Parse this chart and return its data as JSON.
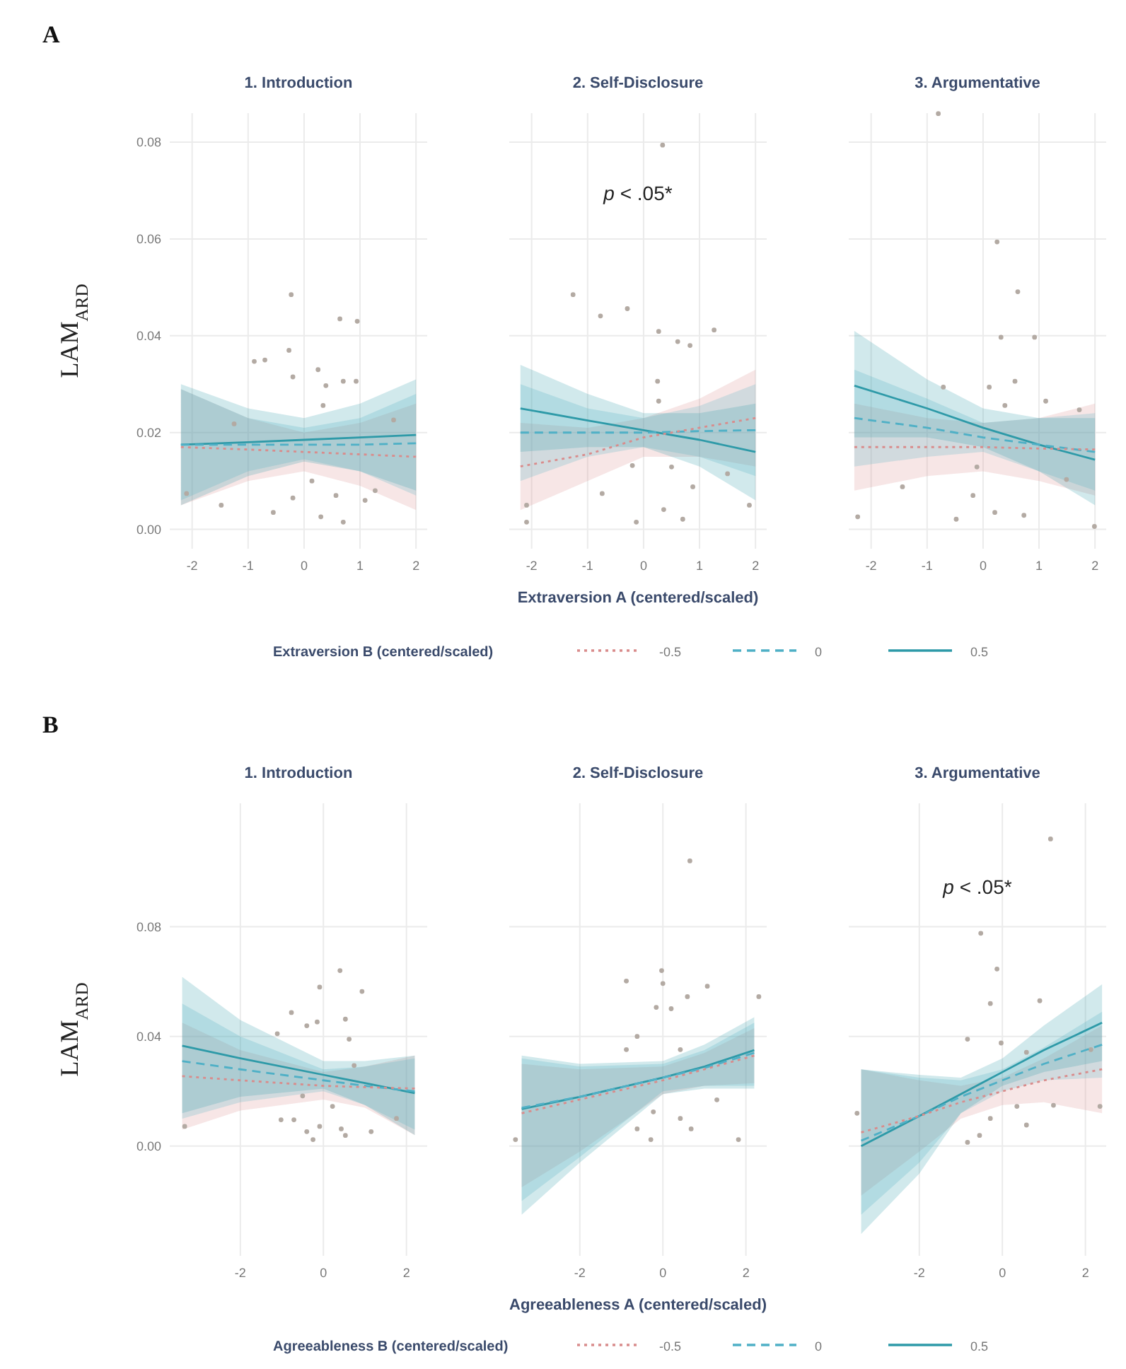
{
  "chart_data": [
    {
      "type": "line",
      "title": "1. Introduction",
      "ylabel": "LAM$_{ARD}$",
      "annotations": [
        "A"
      ],
      "xlim": [
        -2.4,
        2.2
      ],
      "ylim": [
        -0.004,
        0.086
      ],
      "xticks": [
        -2,
        -1,
        0,
        1,
        2
      ],
      "yticks": [
        {
          "value": 0,
          "label": "0.00"
        },
        {
          "value": 0.02,
          "label": "0.02"
        },
        {
          "value": 0.04,
          "label": "0.04"
        },
        {
          "value": 0.06,
          "label": "0.06"
        },
        {
          "value": 0.08,
          "label": "0.08"
        }
      ],
      "grid": true,
      "series": [
        {
          "type": "scatter",
          "marker": "circle",
          "color": "#b3aaa3",
          "x": [
            -0.23,
            0.64,
            0.95,
            -0.89,
            -0.7,
            -0.27,
            -0.2,
            0.25,
            0.39,
            0.7,
            0.93,
            0.34,
            -1.25,
            1.6,
            0.14,
            -0.2,
            -1.48,
            0.57,
            1.09,
            0.3,
            0.7,
            1.27,
            -0.55,
            -2.1
          ],
          "values": [
            0.0485,
            0.0435,
            0.043,
            0.0347,
            0.035,
            0.037,
            0.0315,
            0.033,
            0.0297,
            0.0306,
            0.0306,
            0.0256,
            0.0218,
            0.0226,
            0.01,
            0.0065,
            0.005,
            0.007,
            0.006,
            0.0026,
            0.0015,
            0.008,
            0.0035,
            0.0074
          ]
        },
        {
          "color": "#d98c8c",
          "line_style": "dotted",
          "x": [
            -2.2,
            -1,
            0,
            1,
            2
          ],
          "values": [
            0.017,
            0.0165,
            0.016,
            0.0155,
            0.015
          ],
          "lower": [
            0.005,
            0.01,
            0.012,
            0.009,
            0.004
          ],
          "upper": [
            0.029,
            0.023,
            0.02,
            0.022,
            0.026
          ]
        },
        {
          "color": "#4fb0c6",
          "line_style": "dashed",
          "x": [
            -2.2,
            -1,
            0,
            1,
            2
          ],
          "values": [
            0.0175,
            0.0175,
            0.0175,
            0.0175,
            0.0178
          ],
          "lower": [
            0.006,
            0.012,
            0.0145,
            0.012,
            0.007
          ],
          "upper": [
            0.029,
            0.023,
            0.021,
            0.023,
            0.028
          ]
        },
        {
          "color": "#2e9aa8",
          "line_style": "solid",
          "x": [
            -2.2,
            -1,
            0,
            1,
            2
          ],
          "values": [
            0.0175,
            0.018,
            0.0185,
            0.019,
            0.0195
          ],
          "lower": [
            0.005,
            0.011,
            0.014,
            0.012,
            0.008
          ],
          "upper": [
            0.03,
            0.025,
            0.023,
            0.026,
            0.031
          ]
        }
      ]
    },
    {
      "type": "line",
      "title": "2. Self-Disclosure",
      "xlabel": "Extraversion A (centered/scaled)",
      "legend_title": "Extraversion B (centered/scaled)",
      "legend": "bottom",
      "annotations": [
        "p < .05*"
      ],
      "tick_labels": "x",
      "xlim": [
        -2.4,
        2.2
      ],
      "ylim": [
        -0.004,
        0.086
      ],
      "xticks": [
        -2,
        -1,
        0,
        1,
        2
      ],
      "yticks": [
        {
          "value": 0,
          "label": null
        },
        {
          "value": 0.02,
          "label": null
        },
        {
          "value": 0.04,
          "label": null
        },
        {
          "value": 0.06,
          "label": null
        },
        {
          "value": 0.08,
          "label": null
        }
      ],
      "grid": true,
      "series": [
        {
          "type": "scatter",
          "marker": "circle",
          "color": "#b3aaa3",
          "x": [
            0.34,
            -1.26,
            -0.29,
            -0.77,
            0.27,
            0.61,
            0.83,
            1.26,
            0.25,
            0.27,
            -0.2,
            0.5,
            -0.74,
            -0.13,
            0.7,
            0.88,
            1.5,
            1.89,
            0.36,
            -2.09,
            -2.09
          ],
          "values": [
            0.0794,
            0.0485,
            0.0456,
            0.0441,
            0.0409,
            0.0388,
            0.038,
            0.0412,
            0.0306,
            0.0265,
            0.0132,
            0.0129,
            0.0074,
            0.0015,
            0.0021,
            0.0088,
            0.0115,
            0.005,
            0.0041,
            0.005,
            0.0015
          ]
        },
        {
          "name": "-0.5",
          "color": "#d98c8c",
          "line_style": "dotted",
          "x": [
            -2.2,
            -1,
            0,
            1,
            2
          ],
          "values": [
            0.013,
            0.0155,
            0.019,
            0.021,
            0.023
          ],
          "lower": [
            0.004,
            0.01,
            0.015,
            0.015,
            0.013
          ],
          "upper": [
            0.022,
            0.021,
            0.023,
            0.027,
            0.033
          ]
        },
        {
          "name": "0",
          "color": "#4fb0c6",
          "line_style": "dashed",
          "x": [
            -2.2,
            -1,
            0,
            1,
            2
          ],
          "values": [
            0.02,
            0.02,
            0.02,
            0.0203,
            0.0205
          ],
          "lower": [
            0.01,
            0.015,
            0.017,
            0.015,
            0.011
          ],
          "upper": [
            0.03,
            0.025,
            0.023,
            0.0255,
            0.03
          ]
        },
        {
          "name": "0.5",
          "color": "#2e9aa8",
          "line_style": "solid",
          "x": [
            -2.2,
            -1,
            0,
            1,
            2
          ],
          "values": [
            0.025,
            0.0225,
            0.0205,
            0.0185,
            0.016
          ],
          "lower": [
            0.016,
            0.017,
            0.017,
            0.013,
            0.006
          ],
          "upper": [
            0.034,
            0.028,
            0.024,
            0.024,
            0.026
          ]
        }
      ]
    },
    {
      "type": "line",
      "title": "3. Argumentative",
      "tick_labels": "x",
      "xlim": [
        -2.4,
        2.2
      ],
      "ylim": [
        -0.004,
        0.086
      ],
      "xticks": [
        -2,
        -1,
        0,
        1,
        2
      ],
      "yticks": [
        {
          "value": 0,
          "label": null
        },
        {
          "value": 0.02,
          "label": null
        },
        {
          "value": 0.04,
          "label": null
        },
        {
          "value": 0.06,
          "label": null
        },
        {
          "value": 0.08,
          "label": null
        }
      ],
      "grid": true,
      "series": [
        {
          "type": "scatter",
          "marker": "circle",
          "color": "#b3aaa3",
          "x": [
            -0.8,
            0.25,
            0.62,
            0.32,
            0.92,
            0.11,
            0.57,
            -0.71,
            0.39,
            1.12,
            1.72,
            -0.11,
            -1.44,
            -0.18,
            0.21,
            0.73,
            -0.48,
            -2.24,
            1.99,
            1.49
          ],
          "values": [
            0.0859,
            0.0594,
            0.0491,
            0.0397,
            0.0397,
            0.0294,
            0.0306,
            0.0294,
            0.0256,
            0.0265,
            0.0247,
            0.0129,
            0.0088,
            0.007,
            0.0035,
            0.0029,
            0.0021,
            0.0026,
            0.0006,
            0.0103
          ]
        },
        {
          "color": "#d98c8c",
          "line_style": "dotted",
          "x": [
            -2.3,
            -1,
            0,
            1,
            2
          ],
          "values": [
            0.017,
            0.017,
            0.017,
            0.0167,
            0.0165
          ],
          "lower": [
            0.008,
            0.011,
            0.012,
            0.01,
            0.007
          ],
          "upper": [
            0.026,
            0.023,
            0.022,
            0.023,
            0.026
          ]
        },
        {
          "color": "#4fb0c6",
          "line_style": "dashed",
          "x": [
            -2.3,
            -1,
            0,
            1,
            2
          ],
          "values": [
            0.023,
            0.021,
            0.019,
            0.0175,
            0.016
          ],
          "lower": [
            0.013,
            0.015,
            0.016,
            0.012,
            0.008
          ],
          "upper": [
            0.033,
            0.027,
            0.022,
            0.023,
            0.024
          ]
        },
        {
          "color": "#2e9aa8",
          "line_style": "solid",
          "x": [
            -2.3,
            -1,
            0,
            1,
            2
          ],
          "values": [
            0.0297,
            0.025,
            0.021,
            0.0175,
            0.0144
          ],
          "lower": [
            0.019,
            0.019,
            0.017,
            0.012,
            0.005
          ],
          "upper": [
            0.041,
            0.031,
            0.025,
            0.023,
            0.023
          ]
        }
      ]
    },
    {
      "type": "line",
      "title": "1. Introduction",
      "ylabel": "LAM$_{ARD}$",
      "annotations": [
        "B"
      ],
      "xlim": [
        -3.7,
        2.5
      ],
      "ylim": [
        -0.04,
        0.125
      ],
      "xticks": [
        -2,
        0,
        2
      ],
      "yticks": [
        {
          "value": 0,
          "label": "0.00"
        },
        {
          "value": 0.04,
          "label": "0.04"
        },
        {
          "value": 0.08,
          "label": "0.08"
        }
      ],
      "grid": true,
      "series": [
        {
          "type": "scatter",
          "marker": "circle",
          "color": "#b3aaa3",
          "x": [
            0.4,
            -0.09,
            0.93,
            -0.77,
            0.53,
            -0.4,
            -0.15,
            -1.11,
            0.62,
            0.74,
            -0.5,
            0.22,
            -1.02,
            -0.71,
            -0.4,
            -0.09,
            0.43,
            0.53,
            1.15,
            -0.25,
            -3.34,
            1.76
          ],
          "values": [
            0.064,
            0.058,
            0.0564,
            0.0487,
            0.0463,
            0.0439,
            0.0453,
            0.041,
            0.039,
            0.0294,
            0.0183,
            0.0145,
            0.0096,
            0.0096,
            0.0053,
            0.0072,
            0.0063,
            0.0039,
            0.0053,
            0.0024,
            0.0072,
            0.0101
          ]
        },
        {
          "color": "#d98c8c",
          "line_style": "dotted",
          "x": [
            -3.4,
            -2,
            0,
            1,
            2.2
          ],
          "values": [
            0.0255,
            0.024,
            0.022,
            0.0215,
            0.021
          ],
          "lower": [
            0.006,
            0.013,
            0.017,
            0.014,
            0.004
          ],
          "upper": [
            0.045,
            0.035,
            0.027,
            0.029,
            0.033
          ]
        },
        {
          "color": "#4fb0c6",
          "line_style": "dashed",
          "x": [
            -3.4,
            -2,
            0,
            1,
            2.2
          ],
          "values": [
            0.031,
            0.028,
            0.024,
            0.022,
            0.02
          ],
          "lower": [
            0.01,
            0.016,
            0.02,
            0.015,
            0.006
          ],
          "upper": [
            0.052,
            0.04,
            0.028,
            0.029,
            0.032
          ]
        },
        {
          "color": "#2e9aa8",
          "line_style": "solid",
          "x": [
            -3.4,
            -2,
            0,
            1,
            2.2
          ],
          "values": [
            0.0366,
            0.032,
            0.026,
            0.023,
            0.0193
          ],
          "lower": [
            0.012,
            0.018,
            0.021,
            0.015,
            0.004
          ],
          "upper": [
            0.0617,
            0.046,
            0.031,
            0.031,
            0.033
          ]
        }
      ]
    },
    {
      "type": "line",
      "title": "2. Self-Disclosure",
      "xlabel": "Agreeableness A (centered/scaled)",
      "legend_title": "Agreeableness B (centered/scaled)",
      "legend": "bottom",
      "tick_labels": "x",
      "xlim": [
        -3.7,
        2.5
      ],
      "ylim": [
        -0.04,
        0.125
      ],
      "xticks": [
        -2,
        0,
        2
      ],
      "yticks": [
        {
          "value": 0,
          "label": null
        },
        {
          "value": 0.04,
          "label": null
        },
        {
          "value": 0.08,
          "label": null
        }
      ],
      "grid": true,
      "series": [
        {
          "type": "scatter",
          "marker": "circle",
          "color": "#b3aaa3",
          "x": [
            0.65,
            -0.88,
            -0.03,
            0,
            1.07,
            0.59,
            -0.16,
            0.2,
            2.31,
            -0.62,
            -0.88,
            0.42,
            1.3,
            -0.23,
            0.42,
            -0.62,
            -0.29,
            0.68,
            1.82,
            -3.55
          ],
          "values": [
            0.104,
            0.0602,
            0.064,
            0.0593,
            0.0583,
            0.0545,
            0.0506,
            0.0501,
            0.0545,
            0.04,
            0.0352,
            0.0352,
            0.0169,
            0.0125,
            0.0101,
            0.0063,
            0.0024,
            0.0063,
            0.0024,
            0.0024
          ]
        },
        {
          "name": "-0.5",
          "color": "#d98c8c",
          "line_style": "dotted",
          "x": [
            -3.4,
            -2,
            0,
            1,
            2.2
          ],
          "values": [
            0.012,
            0.017,
            0.024,
            0.028,
            0.033
          ],
          "lower": [
            -0.015,
            -0.002,
            0.019,
            0.022,
            0.023
          ],
          "upper": [
            0.03,
            0.028,
            0.029,
            0.034,
            0.043
          ]
        },
        {
          "name": "0",
          "color": "#4fb0c6",
          "line_style": "dashed",
          "x": [
            -3.4,
            -2,
            0,
            1,
            2.2
          ],
          "values": [
            0.014,
            0.018,
            0.025,
            0.0285,
            0.034
          ],
          "lower": [
            -0.02,
            -0.004,
            0.02,
            0.022,
            0.022
          ],
          "upper": [
            0.032,
            0.029,
            0.03,
            0.035,
            0.045
          ]
        },
        {
          "name": "0.5",
          "color": "#2e9aa8",
          "line_style": "solid",
          "x": [
            -3.4,
            -2,
            0,
            1,
            2.2
          ],
          "values": [
            0.0135,
            0.018,
            0.025,
            0.029,
            0.035
          ],
          "lower": [
            -0.025,
            -0.006,
            0.019,
            0.021,
            0.021
          ],
          "upper": [
            0.033,
            0.03,
            0.031,
            0.037,
            0.047
          ]
        }
      ]
    },
    {
      "type": "line",
      "title": "3. Argumentative",
      "annotations": [
        "p < .05*"
      ],
      "tick_labels": "x",
      "xlim": [
        -3.7,
        2.5
      ],
      "ylim": [
        -0.04,
        0.125
      ],
      "xticks": [
        -2,
        0,
        2
      ],
      "yticks": [
        {
          "value": 0,
          "label": null
        },
        {
          "value": 0.04,
          "label": null
        },
        {
          "value": 0.08,
          "label": null
        }
      ],
      "grid": true,
      "series": [
        {
          "type": "scatter",
          "marker": "circle",
          "color": "#b3aaa3",
          "x": [
            1.16,
            -0.52,
            -0.13,
            -0.29,
            0.9,
            -0.84,
            -0.03,
            0.58,
            2.13,
            0.35,
            1.23,
            -0.29,
            -0.84,
            -0.55,
            0.58,
            -3.5,
            2.35
          ],
          "values": [
            0.112,
            0.0776,
            0.0646,
            0.052,
            0.053,
            0.039,
            0.0376,
            0.0342,
            0.0352,
            0.0145,
            0.0149,
            0.0101,
            0.0014,
            0.0039,
            0.0077,
            0.012,
            0.0145
          ]
        },
        {
          "color": "#d98c8c",
          "line_style": "dotted",
          "x": [
            -3.4,
            -2,
            -1,
            0,
            1,
            2.4
          ],
          "values": [
            0.005,
            0.011,
            0.016,
            0.02,
            0.024,
            0.028
          ],
          "lower": [
            -0.018,
            -0.002,
            0.01,
            0.015,
            0.016,
            0.012
          ],
          "upper": [
            0.028,
            0.024,
            0.022,
            0.025,
            0.032,
            0.044
          ]
        },
        {
          "color": "#4fb0c6",
          "line_style": "dashed",
          "x": [
            -3.4,
            -2,
            -1,
            0,
            1,
            2.4
          ],
          "values": [
            0.002,
            0.011,
            0.018,
            0.024,
            0.03,
            0.037
          ],
          "lower": [
            -0.025,
            -0.006,
            0.012,
            0.02,
            0.024,
            0.025
          ],
          "upper": [
            0.028,
            0.025,
            0.024,
            0.028,
            0.036,
            0.049
          ]
        },
        {
          "color": "#2e9aa8",
          "line_style": "solid",
          "x": [
            -3.4,
            -2,
            -1,
            0,
            1,
            2.4
          ],
          "values": [
            0.0,
            0.011,
            0.019,
            0.027,
            0.035,
            0.045
          ],
          "lower": [
            -0.032,
            -0.01,
            0.012,
            0.022,
            0.027,
            0.031
          ],
          "upper": [
            0.028,
            0.026,
            0.025,
            0.032,
            0.044,
            0.059
          ]
        }
      ]
    }
  ]
}
